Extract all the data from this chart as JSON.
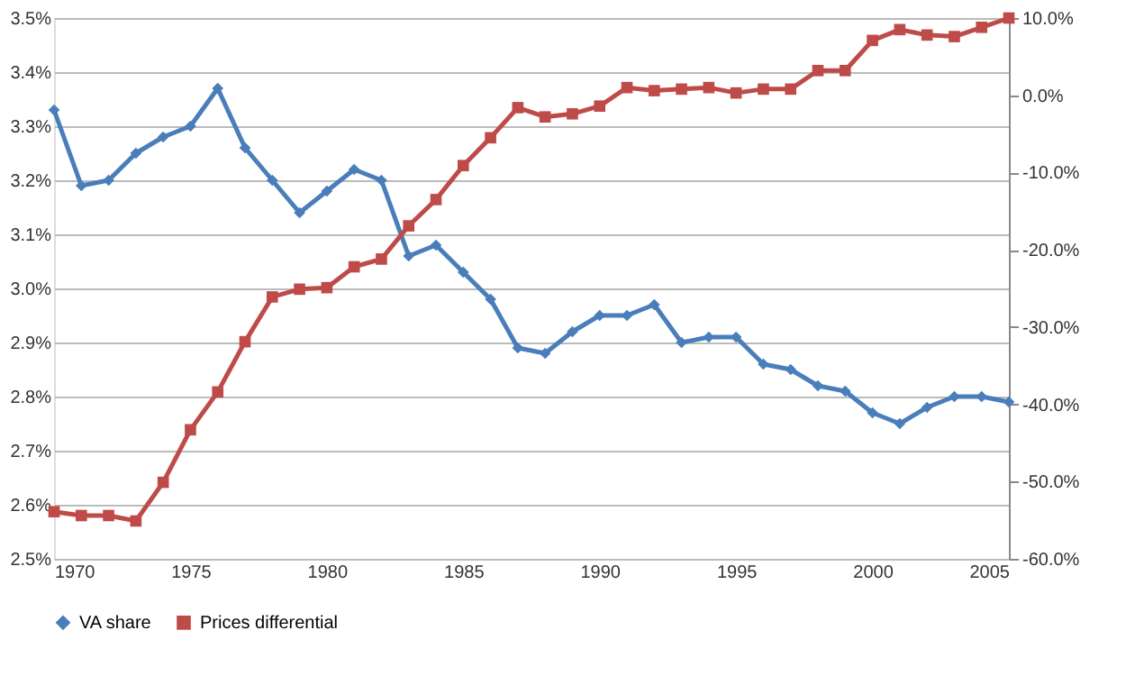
{
  "chart_data": {
    "type": "line",
    "x": [
      1970,
      1971,
      1972,
      1973,
      1974,
      1975,
      1976,
      1977,
      1978,
      1979,
      1980,
      1981,
      1982,
      1983,
      1984,
      1985,
      1986,
      1987,
      1988,
      1989,
      1990,
      1991,
      1992,
      1993,
      1994,
      1995,
      1996,
      1997,
      1998,
      1999,
      2000,
      2001,
      2002,
      2003,
      2004,
      2005
    ],
    "xlim": [
      1970,
      2005
    ],
    "xticks": [
      1970,
      1975,
      1980,
      1985,
      1990,
      1995,
      2000,
      2005
    ],
    "ylim": [
      2.5,
      3.5
    ],
    "yticks": [
      {
        "value": 2.5,
        "label": "2.5%"
      },
      {
        "value": 2.6,
        "label": "2.6%"
      },
      {
        "value": 2.7,
        "label": "2.7%"
      },
      {
        "value": 2.8,
        "label": "2.8%"
      },
      {
        "value": 2.9,
        "label": "2.9%"
      },
      {
        "value": 3.0,
        "label": "3.0%"
      },
      {
        "value": 3.1,
        "label": "3.1%"
      },
      {
        "value": 3.2,
        "label": "3.2%"
      },
      {
        "value": 3.3,
        "label": "3.3%"
      },
      {
        "value": 3.4,
        "label": "3.4%"
      },
      {
        "value": 3.5,
        "label": "3.5%"
      }
    ],
    "y2lim": [
      -60,
      10
    ],
    "y2ticks": [
      {
        "value": -60,
        "label": "-60.0%"
      },
      {
        "value": -50,
        "label": "-50.0%"
      },
      {
        "value": -40,
        "label": "-40.0%"
      },
      {
        "value": -30,
        "label": "-30.0%"
      },
      {
        "value": -20,
        "label": "-20.0%"
      },
      {
        "value": -10,
        "label": "-10.0%"
      },
      {
        "value": 0,
        "label": "0.0%"
      },
      {
        "value": 10,
        "label": "10.0%"
      }
    ],
    "grid": "y",
    "legend": "bottom",
    "line_style": "solid",
    "series": [
      {
        "name": "VA share",
        "color": "#4a7ebb",
        "marker": "diamond",
        "values": [
          3.33,
          3.19,
          3.2,
          3.25,
          3.28,
          3.3,
          3.37,
          3.26,
          3.2,
          3.14,
          3.18,
          3.22,
          3.2,
          3.06,
          3.08,
          3.03,
          2.98,
          2.89,
          2.88,
          2.92,
          2.95,
          2.95,
          2.97,
          2.9,
          2.91,
          2.91,
          2.86,
          2.85,
          2.82,
          2.81,
          2.77,
          2.75,
          2.78,
          2.8,
          2.8,
          2.79
        ]
      },
      {
        "name": "Prices differential",
        "color": "#be4b48",
        "marker": "square",
        "axis": "y2",
        "values": [
          -53.9,
          -54.4,
          -54.4,
          -55.1,
          -50.1,
          -43.3,
          -38.4,
          -31.9,
          -26.1,
          -25.1,
          -24.9,
          -22.2,
          -21.2,
          -16.9,
          -13.5,
          -9.1,
          -5.5,
          -1.6,
          -2.8,
          -2.4,
          -1.4,
          1.0,
          0.6,
          0.8,
          1.0,
          0.3,
          0.8,
          0.8,
          3.2,
          3.2,
          7.1,
          8.5,
          7.8,
          7.6,
          8.8,
          10.0
        ]
      }
    ]
  }
}
